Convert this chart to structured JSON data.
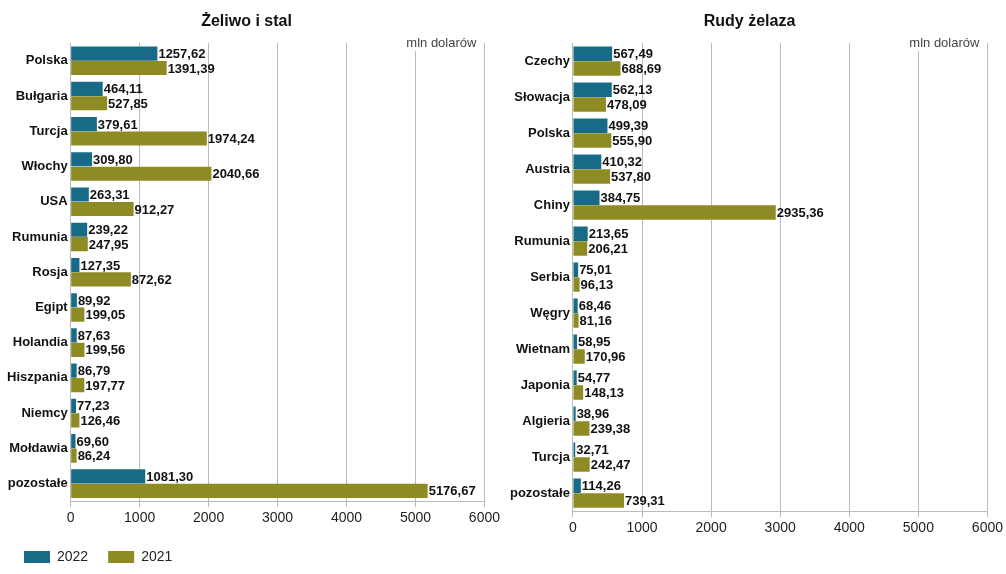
{
  "chart_data": [
    {
      "type": "bar",
      "orientation": "horizontal",
      "title": "Żeliwo i stal",
      "xlabel": "mln dolarów",
      "categories": [
        "Polska",
        "Bułgaria",
        "Turcja",
        "Włochy",
        "USA",
        "Rumunia",
        "Rosja",
        "Egipt",
        "Holandia",
        "Hiszpania",
        "Niemcy",
        "Mołdawia",
        "pozostałe"
      ],
      "series": [
        {
          "name": "2021",
          "color": "#8e8b25",
          "values": [
            1391.39,
            527.85,
            1974.24,
            2040.66,
            912.27,
            247.95,
            872.62,
            199.05,
            199.56,
            197.77,
            126.46,
            86.24,
            5176.67
          ],
          "value_labels": [
            "1391,39",
            "527,85",
            "1974,24",
            "2040,66",
            "912,27",
            "247,95",
            "872,62",
            "199,05",
            "199,56",
            "197,77",
            "126,46",
            "86,24",
            "5176,67"
          ]
        },
        {
          "name": "2022",
          "color": "#176b87",
          "values": [
            1257.62,
            464.11,
            379.61,
            309.8,
            263.31,
            239.22,
            127.35,
            89.92,
            87.63,
            86.79,
            77.23,
            69.6,
            1081.3
          ],
          "value_labels": [
            "1257,62",
            "464,11",
            "379,61",
            "309,80",
            "263,31",
            "239,22",
            "127,35",
            "89,92",
            "87,63",
            "86,79",
            "77,23",
            "69,60",
            "1081,30"
          ]
        }
      ],
      "xlim": [
        0,
        6000
      ],
      "xticks": [
        0,
        1000,
        2000,
        3000,
        4000,
        5000,
        6000
      ],
      "grid": "x",
      "legend": "bottom"
    },
    {
      "type": "bar",
      "orientation": "horizontal",
      "title": "Rudy żelaza",
      "xlabel": "mln dolarów",
      "categories": [
        "Czechy",
        "Słowacja",
        "Polska",
        "Austria",
        "Chiny",
        "Rumunia",
        "Serbia",
        "Węgry",
        "Wietnam",
        "Japonia",
        "Algieria",
        "Turcja",
        "pozostałe"
      ],
      "series": [
        {
          "color": "#8e8b25",
          "values": [
            688.69,
            478.09,
            555.9,
            537.8,
            2935.36,
            206.21,
            96.13,
            81.16,
            170.96,
            148.13,
            239.38,
            242.47,
            739.31
          ],
          "value_labels": [
            "688,69",
            "478,09",
            "555,90",
            "537,80",
            "2935,36",
            "206,21",
            "96,13",
            "81,16",
            "170,96",
            "148,13",
            "239,38",
            "242,47",
            "739,31"
          ]
        },
        {
          "color": "#176b87",
          "values": [
            567.49,
            562.13,
            499.39,
            410.32,
            384.75,
            213.65,
            75.01,
            68.46,
            58.95,
            54.77,
            38.96,
            32.71,
            114.26
          ],
          "value_labels": [
            "567,49",
            "562,13",
            "499,39",
            "410,32",
            "384,75",
            "213,65",
            "75,01",
            "68,46",
            "58,95",
            "54,77",
            "38,96",
            "32,71",
            "114,26"
          ]
        }
      ],
      "xlim": [
        0,
        6000
      ],
      "xticks": [
        0,
        1000,
        2000,
        3000,
        4000,
        5000,
        6000
      ],
      "grid": "x"
    }
  ]
}
